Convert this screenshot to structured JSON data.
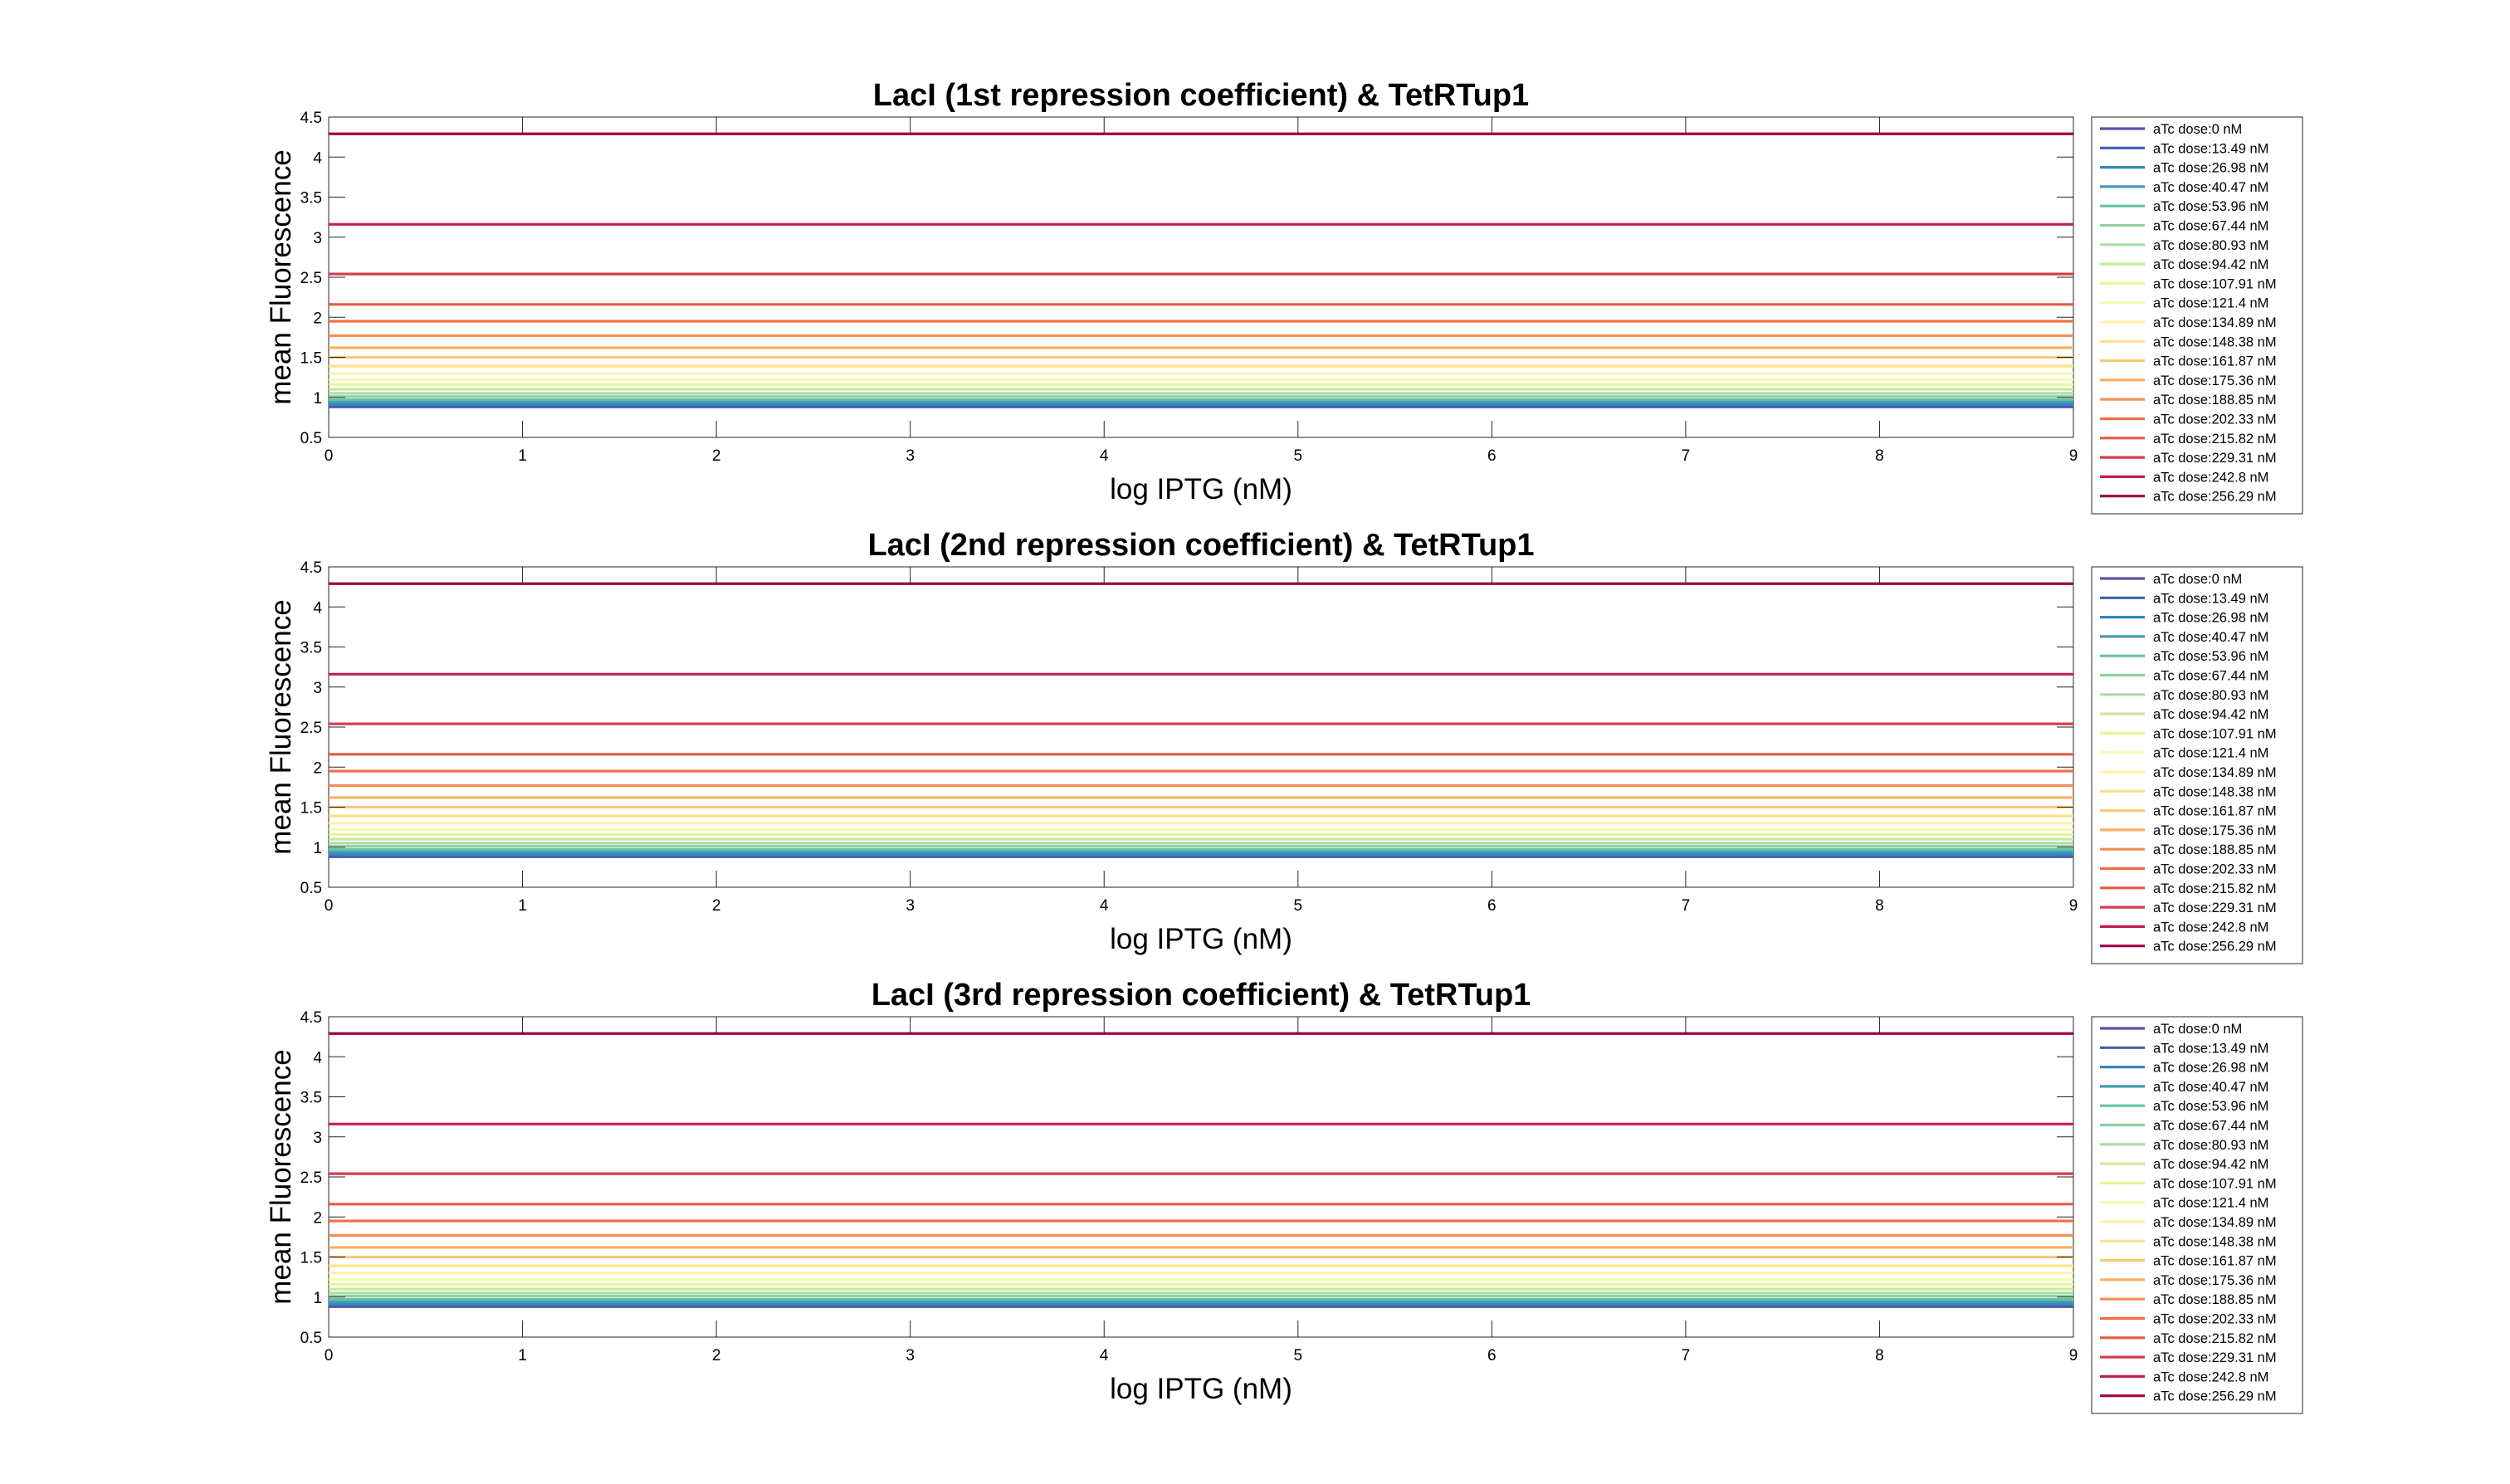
{
  "chart_data": [
    {
      "type": "line",
      "title": "LacI (1st repression coefficient) & TetRTup1",
      "xlabel": "log IPTG (nM)",
      "ylabel": "mean Fluorescence",
      "xlim": [
        0,
        9
      ],
      "ylim": [
        0.5,
        4.5
      ],
      "xticks": [
        "0",
        "1",
        "2",
        "3",
        "4",
        "5",
        "6",
        "7",
        "8",
        "9"
      ],
      "yticks": [
        "0.5",
        "1",
        "1.5",
        "2",
        "2.5",
        "3",
        "3.5",
        "4",
        "4.5"
      ],
      "grid": false,
      "legend_position": "outside-right",
      "x": [
        0,
        9
      ],
      "series": [
        {
          "name": "aTc dose:0 nM",
          "value": 0.88,
          "color": "#5e4fa2"
        },
        {
          "name": "aTc dose:13.49 nM",
          "value": 0.89,
          "color": "#3f60ae"
        },
        {
          "name": "aTc dose:26.98 nM",
          "value": 0.91,
          "color": "#3288bd"
        },
        {
          "name": "aTc dose:40.47 nM",
          "value": 0.94,
          "color": "#439bb5"
        },
        {
          "name": "aTc dose:53.96 nM",
          "value": 0.97,
          "color": "#66c2a5"
        },
        {
          "name": "aTc dose:67.44 nM",
          "value": 1.01,
          "color": "#8ed1a4"
        },
        {
          "name": "aTc dose:80.93 nM",
          "value": 1.05,
          "color": "#abdda4"
        },
        {
          "name": "aTc dose:94.42 nM",
          "value": 1.1,
          "color": "#cbe99d"
        },
        {
          "name": "aTc dose:107.91 nM",
          "value": 1.16,
          "color": "#e6f598"
        },
        {
          "name": "aTc dose:121.4 nM",
          "value": 1.22,
          "color": "#f4fab0"
        },
        {
          "name": "aTc dose:134.89 nM",
          "value": 1.3,
          "color": "#fff1a8"
        },
        {
          "name": "aTc dose:148.38 nM",
          "value": 1.39,
          "color": "#fee08b"
        },
        {
          "name": "aTc dose:161.87 nM",
          "value": 1.5,
          "color": "#fdc877"
        },
        {
          "name": "aTc dose:175.36 nM",
          "value": 1.62,
          "color": "#fdae61"
        },
        {
          "name": "aTc dose:188.85 nM",
          "value": 1.77,
          "color": "#f88d52"
        },
        {
          "name": "aTc dose:202.33 nM",
          "value": 1.95,
          "color": "#f46d43"
        },
        {
          "name": "aTc dose:215.82 nM",
          "value": 2.16,
          "color": "#e55a45"
        },
        {
          "name": "aTc dose:229.31 nM",
          "value": 2.54,
          "color": "#d53e4f"
        },
        {
          "name": "aTc dose:242.8 nM",
          "value": 3.16,
          "color": "#c2214a"
        },
        {
          "name": "aTc dose:256.29 nM",
          "value": 4.29,
          "color": "#9e0142"
        }
      ]
    },
    {
      "type": "line",
      "title": "LacI (2nd repression coefficient) & TetRTup1",
      "xlabel": "log IPTG (nM)",
      "ylabel": "mean Fluorescence",
      "xlim": [
        0,
        9
      ],
      "ylim": [
        0.5,
        4.5
      ],
      "xticks": [
        "0",
        "1",
        "2",
        "3",
        "4",
        "5",
        "6",
        "7",
        "8",
        "9"
      ],
      "yticks": [
        "0.5",
        "1",
        "1.5",
        "2",
        "2.5",
        "3",
        "3.5",
        "4",
        "4.5"
      ],
      "grid": false,
      "legend_position": "outside-right",
      "x": [
        0,
        9
      ],
      "series": [
        {
          "name": "aTc dose:0 nM",
          "value": 0.88,
          "color": "#5e4fa2"
        },
        {
          "name": "aTc dose:13.49 nM",
          "value": 0.89,
          "color": "#3f60ae"
        },
        {
          "name": "aTc dose:26.98 nM",
          "value": 0.91,
          "color": "#3288bd"
        },
        {
          "name": "aTc dose:40.47 nM",
          "value": 0.94,
          "color": "#439bb5"
        },
        {
          "name": "aTc dose:53.96 nM",
          "value": 0.97,
          "color": "#66c2a5"
        },
        {
          "name": "aTc dose:67.44 nM",
          "value": 1.01,
          "color": "#8ed1a4"
        },
        {
          "name": "aTc dose:80.93 nM",
          "value": 1.05,
          "color": "#abdda4"
        },
        {
          "name": "aTc dose:94.42 nM",
          "value": 1.1,
          "color": "#cbe99d"
        },
        {
          "name": "aTc dose:107.91 nM",
          "value": 1.16,
          "color": "#e6f598"
        },
        {
          "name": "aTc dose:121.4 nM",
          "value": 1.22,
          "color": "#f4fab0"
        },
        {
          "name": "aTc dose:134.89 nM",
          "value": 1.3,
          "color": "#fff1a8"
        },
        {
          "name": "aTc dose:148.38 nM",
          "value": 1.39,
          "color": "#fee08b"
        },
        {
          "name": "aTc dose:161.87 nM",
          "value": 1.5,
          "color": "#fdc877"
        },
        {
          "name": "aTc dose:175.36 nM",
          "value": 1.62,
          "color": "#fdae61"
        },
        {
          "name": "aTc dose:188.85 nM",
          "value": 1.77,
          "color": "#f88d52"
        },
        {
          "name": "aTc dose:202.33 nM",
          "value": 1.95,
          "color": "#f46d43"
        },
        {
          "name": "aTc dose:215.82 nM",
          "value": 2.16,
          "color": "#e55a45"
        },
        {
          "name": "aTc dose:229.31 nM",
          "value": 2.54,
          "color": "#d53e4f"
        },
        {
          "name": "aTc dose:242.8 nM",
          "value": 3.16,
          "color": "#c2214a"
        },
        {
          "name": "aTc dose:256.29 nM",
          "value": 4.29,
          "color": "#9e0142"
        }
      ]
    },
    {
      "type": "line",
      "title": "LacI (3rd repression coefficient) & TetRTup1",
      "xlabel": "log IPTG (nM)",
      "ylabel": "mean Fluorescence",
      "xlim": [
        0,
        9
      ],
      "ylim": [
        0.5,
        4.5
      ],
      "xticks": [
        "0",
        "1",
        "2",
        "3",
        "4",
        "5",
        "6",
        "7",
        "8",
        "9"
      ],
      "yticks": [
        "0.5",
        "1",
        "1.5",
        "2",
        "2.5",
        "3",
        "3.5",
        "4",
        "4.5"
      ],
      "grid": false,
      "legend_position": "outside-right",
      "x": [
        0,
        9
      ],
      "series": [
        {
          "name": "aTc dose:0 nM",
          "value": 0.88,
          "color": "#5e4fa2"
        },
        {
          "name": "aTc dose:13.49 nM",
          "value": 0.89,
          "color": "#3f60ae"
        },
        {
          "name": "aTc dose:26.98 nM",
          "value": 0.91,
          "color": "#3288bd"
        },
        {
          "name": "aTc dose:40.47 nM",
          "value": 0.94,
          "color": "#439bb5"
        },
        {
          "name": "aTc dose:53.96 nM",
          "value": 0.97,
          "color": "#66c2a5"
        },
        {
          "name": "aTc dose:67.44 nM",
          "value": 1.01,
          "color": "#8ed1a4"
        },
        {
          "name": "aTc dose:80.93 nM",
          "value": 1.05,
          "color": "#abdda4"
        },
        {
          "name": "aTc dose:94.42 nM",
          "value": 1.1,
          "color": "#cbe99d"
        },
        {
          "name": "aTc dose:107.91 nM",
          "value": 1.16,
          "color": "#e6f598"
        },
        {
          "name": "aTc dose:121.4 nM",
          "value": 1.22,
          "color": "#f4fab0"
        },
        {
          "name": "aTc dose:134.89 nM",
          "value": 1.3,
          "color": "#fff1a8"
        },
        {
          "name": "aTc dose:148.38 nM",
          "value": 1.39,
          "color": "#fee08b"
        },
        {
          "name": "aTc dose:161.87 nM",
          "value": 1.5,
          "color": "#fdc877"
        },
        {
          "name": "aTc dose:175.36 nM",
          "value": 1.62,
          "color": "#fdae61"
        },
        {
          "name": "aTc dose:188.85 nM",
          "value": 1.77,
          "color": "#f88d52"
        },
        {
          "name": "aTc dose:202.33 nM",
          "value": 1.95,
          "color": "#f46d43"
        },
        {
          "name": "aTc dose:215.82 nM",
          "value": 2.16,
          "color": "#e55a45"
        },
        {
          "name": "aTc dose:229.31 nM",
          "value": 2.54,
          "color": "#d53e4f"
        },
        {
          "name": "aTc dose:242.8 nM",
          "value": 3.16,
          "color": "#c2214a"
        },
        {
          "name": "aTc dose:256.29 nM",
          "value": 4.29,
          "color": "#9e0142"
        }
      ]
    }
  ]
}
